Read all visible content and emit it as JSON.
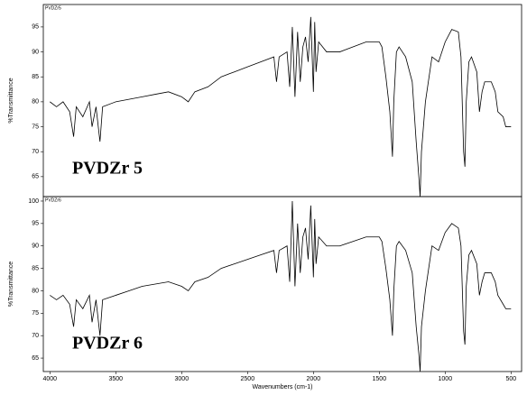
{
  "chart_data": [
    {
      "type": "line",
      "title": "PVDZr 5",
      "subtitle": "PVDZr5",
      "ylabel": "%Transmittance",
      "xlim": [
        4050,
        420
      ],
      "ylim": [
        61,
        99.5
      ],
      "yticks": [
        65,
        70,
        75,
        80,
        85,
        90,
        95
      ],
      "x": [
        4000,
        3950,
        3900,
        3850,
        3820,
        3800,
        3750,
        3700,
        3680,
        3650,
        3620,
        3600,
        3500,
        3400,
        3300,
        3200,
        3100,
        3000,
        2950,
        2900,
        2800,
        2700,
        2600,
        2500,
        2400,
        2300,
        2280,
        2260,
        2200,
        2180,
        2160,
        2140,
        2120,
        2100,
        2080,
        2060,
        2040,
        2020,
        2000,
        1990,
        1980,
        1960,
        1900,
        1800,
        1700,
        1600,
        1500,
        1480,
        1450,
        1420,
        1400,
        1390,
        1370,
        1350,
        1300,
        1250,
        1220,
        1200,
        1190,
        1180,
        1150,
        1100,
        1050,
        1000,
        950,
        900,
        880,
        860,
        850,
        840,
        820,
        800,
        760,
        740,
        720,
        700,
        650,
        620,
        600,
        560,
        540,
        500
      ],
      "series": [
        {
          "name": "PVDZr5",
          "color": "#000000",
          "values": [
            80,
            79,
            80,
            78,
            73,
            79,
            77,
            80,
            75,
            79,
            72,
            79,
            80,
            80.5,
            81,
            81.5,
            82,
            81,
            80,
            82,
            83,
            85,
            86,
            87,
            88,
            89,
            84,
            89,
            90,
            83,
            95,
            81,
            94,
            84,
            91,
            93,
            88,
            97,
            82,
            96,
            86,
            92,
            90,
            90,
            91,
            92,
            92,
            91,
            85,
            78,
            69,
            80,
            90,
            91,
            89,
            84,
            72,
            65,
            61,
            70,
            80,
            89,
            88,
            92,
            94.5,
            94,
            89,
            70,
            67,
            80,
            88,
            89,
            86,
            78,
            82,
            84,
            84,
            82,
            78,
            77,
            75,
            75
          ]
        }
      ]
    },
    {
      "type": "line",
      "title": "PVDZr 6",
      "subtitle": "PVDZr6",
      "ylabel": "%Transmittance",
      "xlabel": "Wavenumbers (cm-1)",
      "xlim": [
        4050,
        420
      ],
      "ylim": [
        62,
        101
      ],
      "yticks": [
        65,
        70,
        75,
        80,
        85,
        90,
        95,
        100
      ],
      "xticks": [
        4000,
        3500,
        3000,
        2500,
        2000,
        1500,
        1000,
        500
      ],
      "x": [
        4000,
        3950,
        3900,
        3850,
        3820,
        3800,
        3750,
        3700,
        3680,
        3650,
        3620,
        3600,
        3500,
        3400,
        3300,
        3200,
        3100,
        3000,
        2950,
        2900,
        2800,
        2700,
        2600,
        2500,
        2400,
        2300,
        2280,
        2260,
        2200,
        2180,
        2160,
        2140,
        2120,
        2100,
        2080,
        2060,
        2040,
        2020,
        2000,
        1990,
        1980,
        1960,
        1900,
        1800,
        1700,
        1600,
        1500,
        1480,
        1450,
        1420,
        1400,
        1390,
        1370,
        1350,
        1300,
        1250,
        1220,
        1200,
        1190,
        1180,
        1150,
        1100,
        1050,
        1000,
        950,
        900,
        880,
        860,
        850,
        840,
        820,
        800,
        760,
        740,
        720,
        700,
        650,
        620,
        600,
        560,
        540,
        500
      ],
      "series": [
        {
          "name": "PVDZr6",
          "color": "#000000",
          "values": [
            79,
            78,
            79,
            77,
            72,
            78,
            76,
            79,
            73,
            78,
            70,
            78,
            79,
            80,
            81,
            81.5,
            82,
            81,
            80,
            82,
            83,
            85,
            86,
            87,
            88,
            89,
            84,
            89,
            90,
            82,
            100,
            81,
            95,
            84,
            92,
            94,
            87,
            99,
            83,
            96,
            86,
            92,
            90,
            90,
            91,
            92,
            92,
            91,
            85,
            78,
            70,
            80,
            90,
            91,
            89,
            84,
            72,
            66,
            62,
            72,
            80,
            90,
            89,
            93,
            95,
            94,
            90,
            71,
            68,
            81,
            88,
            89,
            86,
            79,
            82,
            84,
            84,
            82,
            79,
            77,
            76,
            76
          ]
        }
      ]
    }
  ]
}
